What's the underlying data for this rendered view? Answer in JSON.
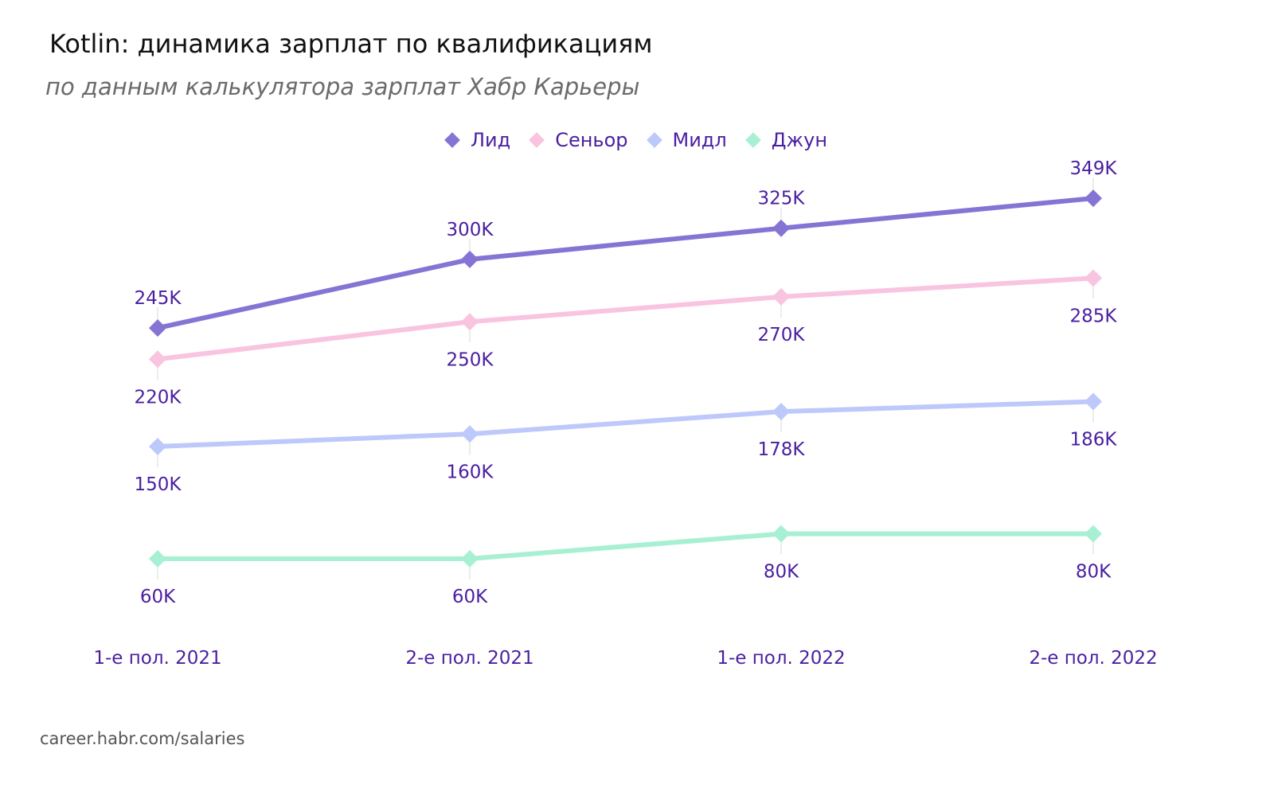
{
  "title": "Kotlin: динамика зарплат по квалификациям",
  "subtitle": "по данным калькулятора зарплат Хабр Карьеры",
  "source": "career.habr.com/salaries",
  "colors": {
    "label_text": "#4a1fa0",
    "axis_text": "#4a1fa0"
  },
  "legend": [
    {
      "label": "Лид",
      "color": "#8574d4"
    },
    {
      "label": "Сеньор",
      "color": "#f9c4df"
    },
    {
      "label": "Мидл",
      "color": "#bdc9fb"
    },
    {
      "label": "Джун",
      "color": "#a8f0d3"
    }
  ],
  "chart_data": {
    "type": "line",
    "title": "Kotlin: динамика зарплат по квалификациям",
    "subtitle": "по данным калькулятора зарплат Хабр Карьеры",
    "xlabel": "",
    "ylabel": "",
    "categories": [
      "1-е пол. 2021",
      "2-е пол. 2021",
      "1-е пол. 2022",
      "2-е пол. 2022"
    ],
    "series": [
      {
        "name": "Лид",
        "color": "#8574d4",
        "values": [
          245,
          300,
          325,
          349
        ],
        "labels": [
          "245K",
          "300K",
          "325K",
          "349K"
        ],
        "label_position": "above"
      },
      {
        "name": "Сеньор",
        "color": "#f9c4df",
        "values": [
          220,
          250,
          270,
          285
        ],
        "labels": [
          "220K",
          "250K",
          "270K",
          "285K"
        ],
        "label_position": "below"
      },
      {
        "name": "Мидл",
        "color": "#bdc9fb",
        "values": [
          150,
          160,
          178,
          186
        ],
        "labels": [
          "150K",
          "160K",
          "178K",
          "186K"
        ],
        "label_position": "below"
      },
      {
        "name": "Джун",
        "color": "#a8f0d3",
        "values": [
          60,
          60,
          80,
          80
        ],
        "labels": [
          "60K",
          "60K",
          "80K",
          "80K"
        ],
        "label_position": "below"
      }
    ],
    "unit": "K",
    "legend_position": "top",
    "grid": false,
    "marker": "diamond"
  }
}
